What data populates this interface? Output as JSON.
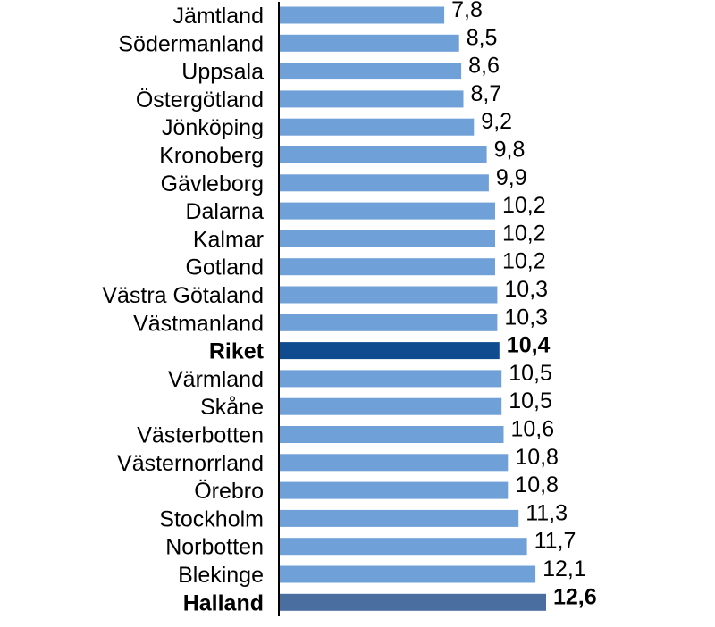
{
  "chart_data": {
    "type": "bar",
    "orientation": "horizontal",
    "categories": [
      "Jämtland",
      "Södermanland",
      "Uppsala",
      "Östergötland",
      "Jönköping",
      "Kronoberg",
      "Gävleborg",
      "Dalarna",
      "Kalmar",
      "Gotland",
      "Västra Götaland",
      "Västmanland",
      "Riket",
      "Värmland",
      "Skåne",
      "Västerbotten",
      "Västernorrland",
      "Örebro",
      "Stockholm",
      "Norbotten",
      "Blekinge",
      "Halland"
    ],
    "values": [
      7.8,
      8.5,
      8.6,
      8.7,
      9.2,
      9.8,
      9.9,
      10.2,
      10.2,
      10.2,
      10.3,
      10.3,
      10.4,
      10.5,
      10.5,
      10.6,
      10.8,
      10.8,
      11.3,
      11.7,
      12.1,
      12.6
    ],
    "value_labels": [
      "7,8",
      "8,5",
      "8,6",
      "8,7",
      "9,2",
      "9,8",
      "9,9",
      "10,2",
      "10,2",
      "10,2",
      "10,3",
      "10,3",
      "10,4",
      "10,5",
      "10,5",
      "10,6",
      "10,8",
      "10,8",
      "11,3",
      "11,7",
      "12,1",
      "12,6"
    ],
    "highlighted": [
      "Riket",
      "Halland"
    ],
    "colors": {
      "default": "#6fa0d8",
      "Riket": "#0f4c8f",
      "Halland": "#4a6ea0"
    },
    "title": "",
    "xlabel": "",
    "ylabel": "",
    "xlim": [
      0,
      12.6
    ],
    "grid": false,
    "legend": "none"
  }
}
